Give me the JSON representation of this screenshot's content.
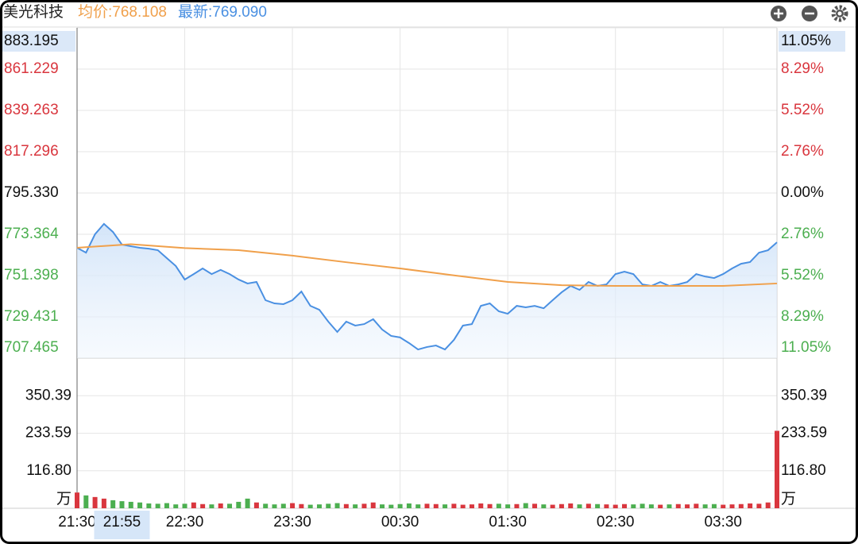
{
  "chart_data": {
    "type": "line",
    "title": "美光科技",
    "x": [
      0,
      5,
      10,
      15,
      20,
      25,
      30,
      35,
      40,
      45,
      50,
      55,
      60,
      65,
      70,
      75,
      80,
      85,
      90,
      95,
      100,
      105,
      110,
      115,
      120,
      125,
      130,
      135,
      140,
      145,
      150,
      155,
      160,
      165,
      170,
      175,
      180,
      185,
      190,
      195,
      200,
      205,
      210,
      215,
      220,
      225,
      230,
      235,
      240,
      245,
      250,
      255,
      260,
      265,
      270,
      275,
      280,
      285,
      290,
      295,
      300,
      305,
      310,
      315,
      320,
      325,
      330,
      335,
      340,
      345,
      350,
      355,
      360,
      365,
      370,
      375,
      380,
      385,
      390
    ],
    "xlim": [
      0,
      390
    ],
    "xticks": [
      {
        "value": 0,
        "label": "21:30"
      },
      {
        "value": 60,
        "label": "22:30"
      },
      {
        "value": 120,
        "label": "23:30"
      },
      {
        "value": 180,
        "label": "00:30"
      },
      {
        "value": 240,
        "label": "01:30"
      },
      {
        "value": 300,
        "label": "02:30"
      },
      {
        "value": 360,
        "label": "03:30"
      }
    ],
    "crosshair": {
      "value": 25,
      "label": "21:55"
    },
    "series": [
      {
        "label": "均价:768.108",
        "color": "#f0a04b",
        "x": [
          0,
          30,
          60,
          90,
          120,
          150,
          180,
          210,
          240,
          270,
          300,
          330,
          360,
          390
        ],
        "values": [
          766.2,
          768.1,
          766.0,
          764.9,
          762.0,
          758.5,
          755.2,
          751.5,
          748.0,
          746.3,
          745.9,
          745.9,
          745.9,
          747.2
        ]
      },
      {
        "label": "最新:769.090",
        "color": "#4a90e2",
        "area": true,
        "values": [
          766.18,
          763.6,
          773.4,
          778.9,
          774.6,
          767.9,
          767.0,
          766.2,
          765.7,
          764.9,
          760.7,
          756.5,
          749.3,
          752.2,
          755.2,
          752.2,
          754.4,
          752.2,
          749.3,
          747.2,
          748.0,
          738.3,
          736.6,
          736.2,
          738.3,
          742.9,
          735.3,
          733.2,
          726.9,
          721.4,
          726.9,
          724.8,
          725.6,
          728.2,
          722.7,
          719.3,
          718.5,
          715.5,
          712.1,
          713.4,
          714.2,
          712.1,
          717.2,
          724.8,
          725.6,
          735.3,
          736.6,
          732.4,
          731.1,
          735.3,
          734.5,
          735.3,
          734.0,
          738.3,
          742.5,
          745.9,
          743.8,
          748.0,
          745.9,
          746.7,
          752.2,
          753.5,
          752.2,
          746.7,
          745.9,
          748.0,
          745.9,
          746.7,
          748.0,
          752.2,
          750.9,
          750.1,
          752.2,
          755.2,
          757.7,
          758.6,
          763.6,
          764.9,
          769.09
        ]
      }
    ],
    "ylim": [
      707.465,
      883.195
    ],
    "yticks": [
      883.195,
      861.229,
      839.263,
      817.296,
      {
        "value": 795.33,
        "label": "795.330"
      },
      773.364,
      751.398,
      729.431,
      707.465
    ],
    "y2lim": [
      -11.05,
      11.05
    ],
    "y2ticks": [
      {
        "value": 11.05,
        "label": "11.05%"
      },
      {
        "value": 8.29,
        "label": "8.29%"
      },
      {
        "value": 5.52,
        "label": "5.52%"
      },
      {
        "value": 2.76,
        "label": "2.76%"
      },
      {
        "value": 0,
        "label": "0.00%"
      },
      {
        "value": -2.76,
        "label": "2.76%"
      },
      {
        "value": -5.52,
        "label": "5.52%"
      },
      {
        "value": -8.29,
        "label": "8.29%"
      },
      {
        "value": -11.05,
        "label": "11.05%"
      }
    ],
    "up_color": "#d9363e",
    "down_color": "#4caf50",
    "grid": true,
    "volume": {
      "unit": "万",
      "values": [
        49,
        40,
        35,
        30,
        25,
        22,
        20,
        18,
        15,
        14,
        16,
        12,
        14,
        18,
        13,
        12,
        15,
        14,
        20,
        30,
        18,
        14,
        12,
        14,
        16,
        13,
        11,
        12,
        14,
        16,
        13,
        12,
        14,
        18,
        12,
        11,
        13,
        15,
        12,
        14,
        13,
        12,
        14,
        11,
        12,
        15,
        13,
        14,
        12,
        13,
        16,
        14,
        12,
        11,
        13,
        15,
        12,
        14,
        13,
        12,
        11,
        13,
        12,
        14,
        12,
        11,
        12,
        13,
        12,
        14,
        12,
        13,
        11,
        12,
        13,
        15,
        14,
        18,
        241
      ],
      "ylim": [
        0,
        467.19
      ],
      "yticks": [
        350.39,
        233.59,
        {
          "value": 116.8,
          "label": "116.80"
        }
      ]
    }
  }
}
